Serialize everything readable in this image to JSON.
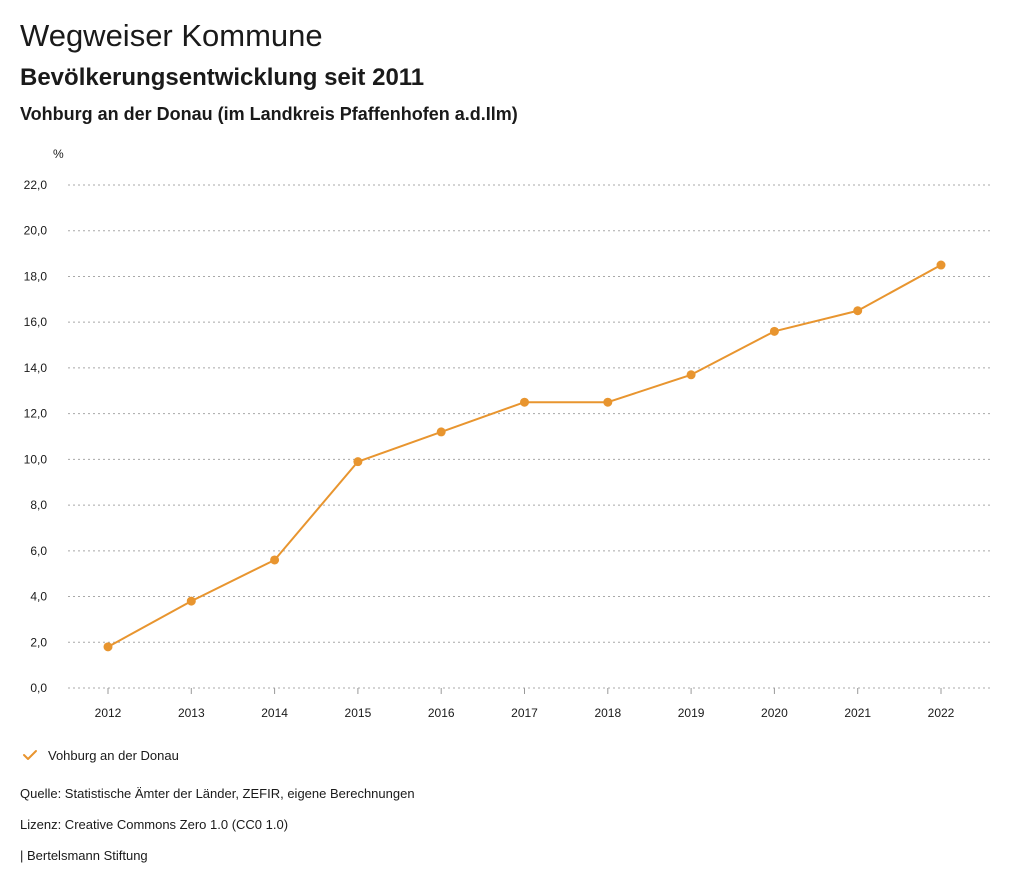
{
  "header": {
    "title": "Wegweiser Kommune",
    "subtitle": "Bevölkerungsentwicklung seit 2011",
    "region": "Vohburg an der Donau (im Landkreis Pfaffenhofen a.d.Ilm)"
  },
  "chart_data": {
    "type": "line",
    "unit_label": "%",
    "x": [
      "2012",
      "2013",
      "2014",
      "2015",
      "2016",
      "2017",
      "2018",
      "2019",
      "2020",
      "2021",
      "2022"
    ],
    "yticks": [
      "0,0",
      "2,0",
      "4,0",
      "6,0",
      "8,0",
      "10,0",
      "12,0",
      "14,0",
      "16,0",
      "18,0",
      "20,0",
      "22,0"
    ],
    "ylim": [
      0,
      22
    ],
    "grid": true,
    "legend_position": "bottom-left",
    "series": [
      {
        "name": "Vohburg an der Donau",
        "color": "#e8952f",
        "values": [
          1.8,
          3.8,
          5.6,
          9.9,
          11.2,
          12.5,
          12.5,
          13.7,
          15.6,
          16.5,
          18.5
        ]
      }
    ]
  },
  "footer": {
    "source": "Quelle: Statistische Ämter der Länder, ZEFIR, eigene Berechnungen",
    "license": "Lizenz: Creative Commons Zero 1.0 (CC0 1.0)",
    "publisher": "| Bertelsmann Stiftung"
  }
}
